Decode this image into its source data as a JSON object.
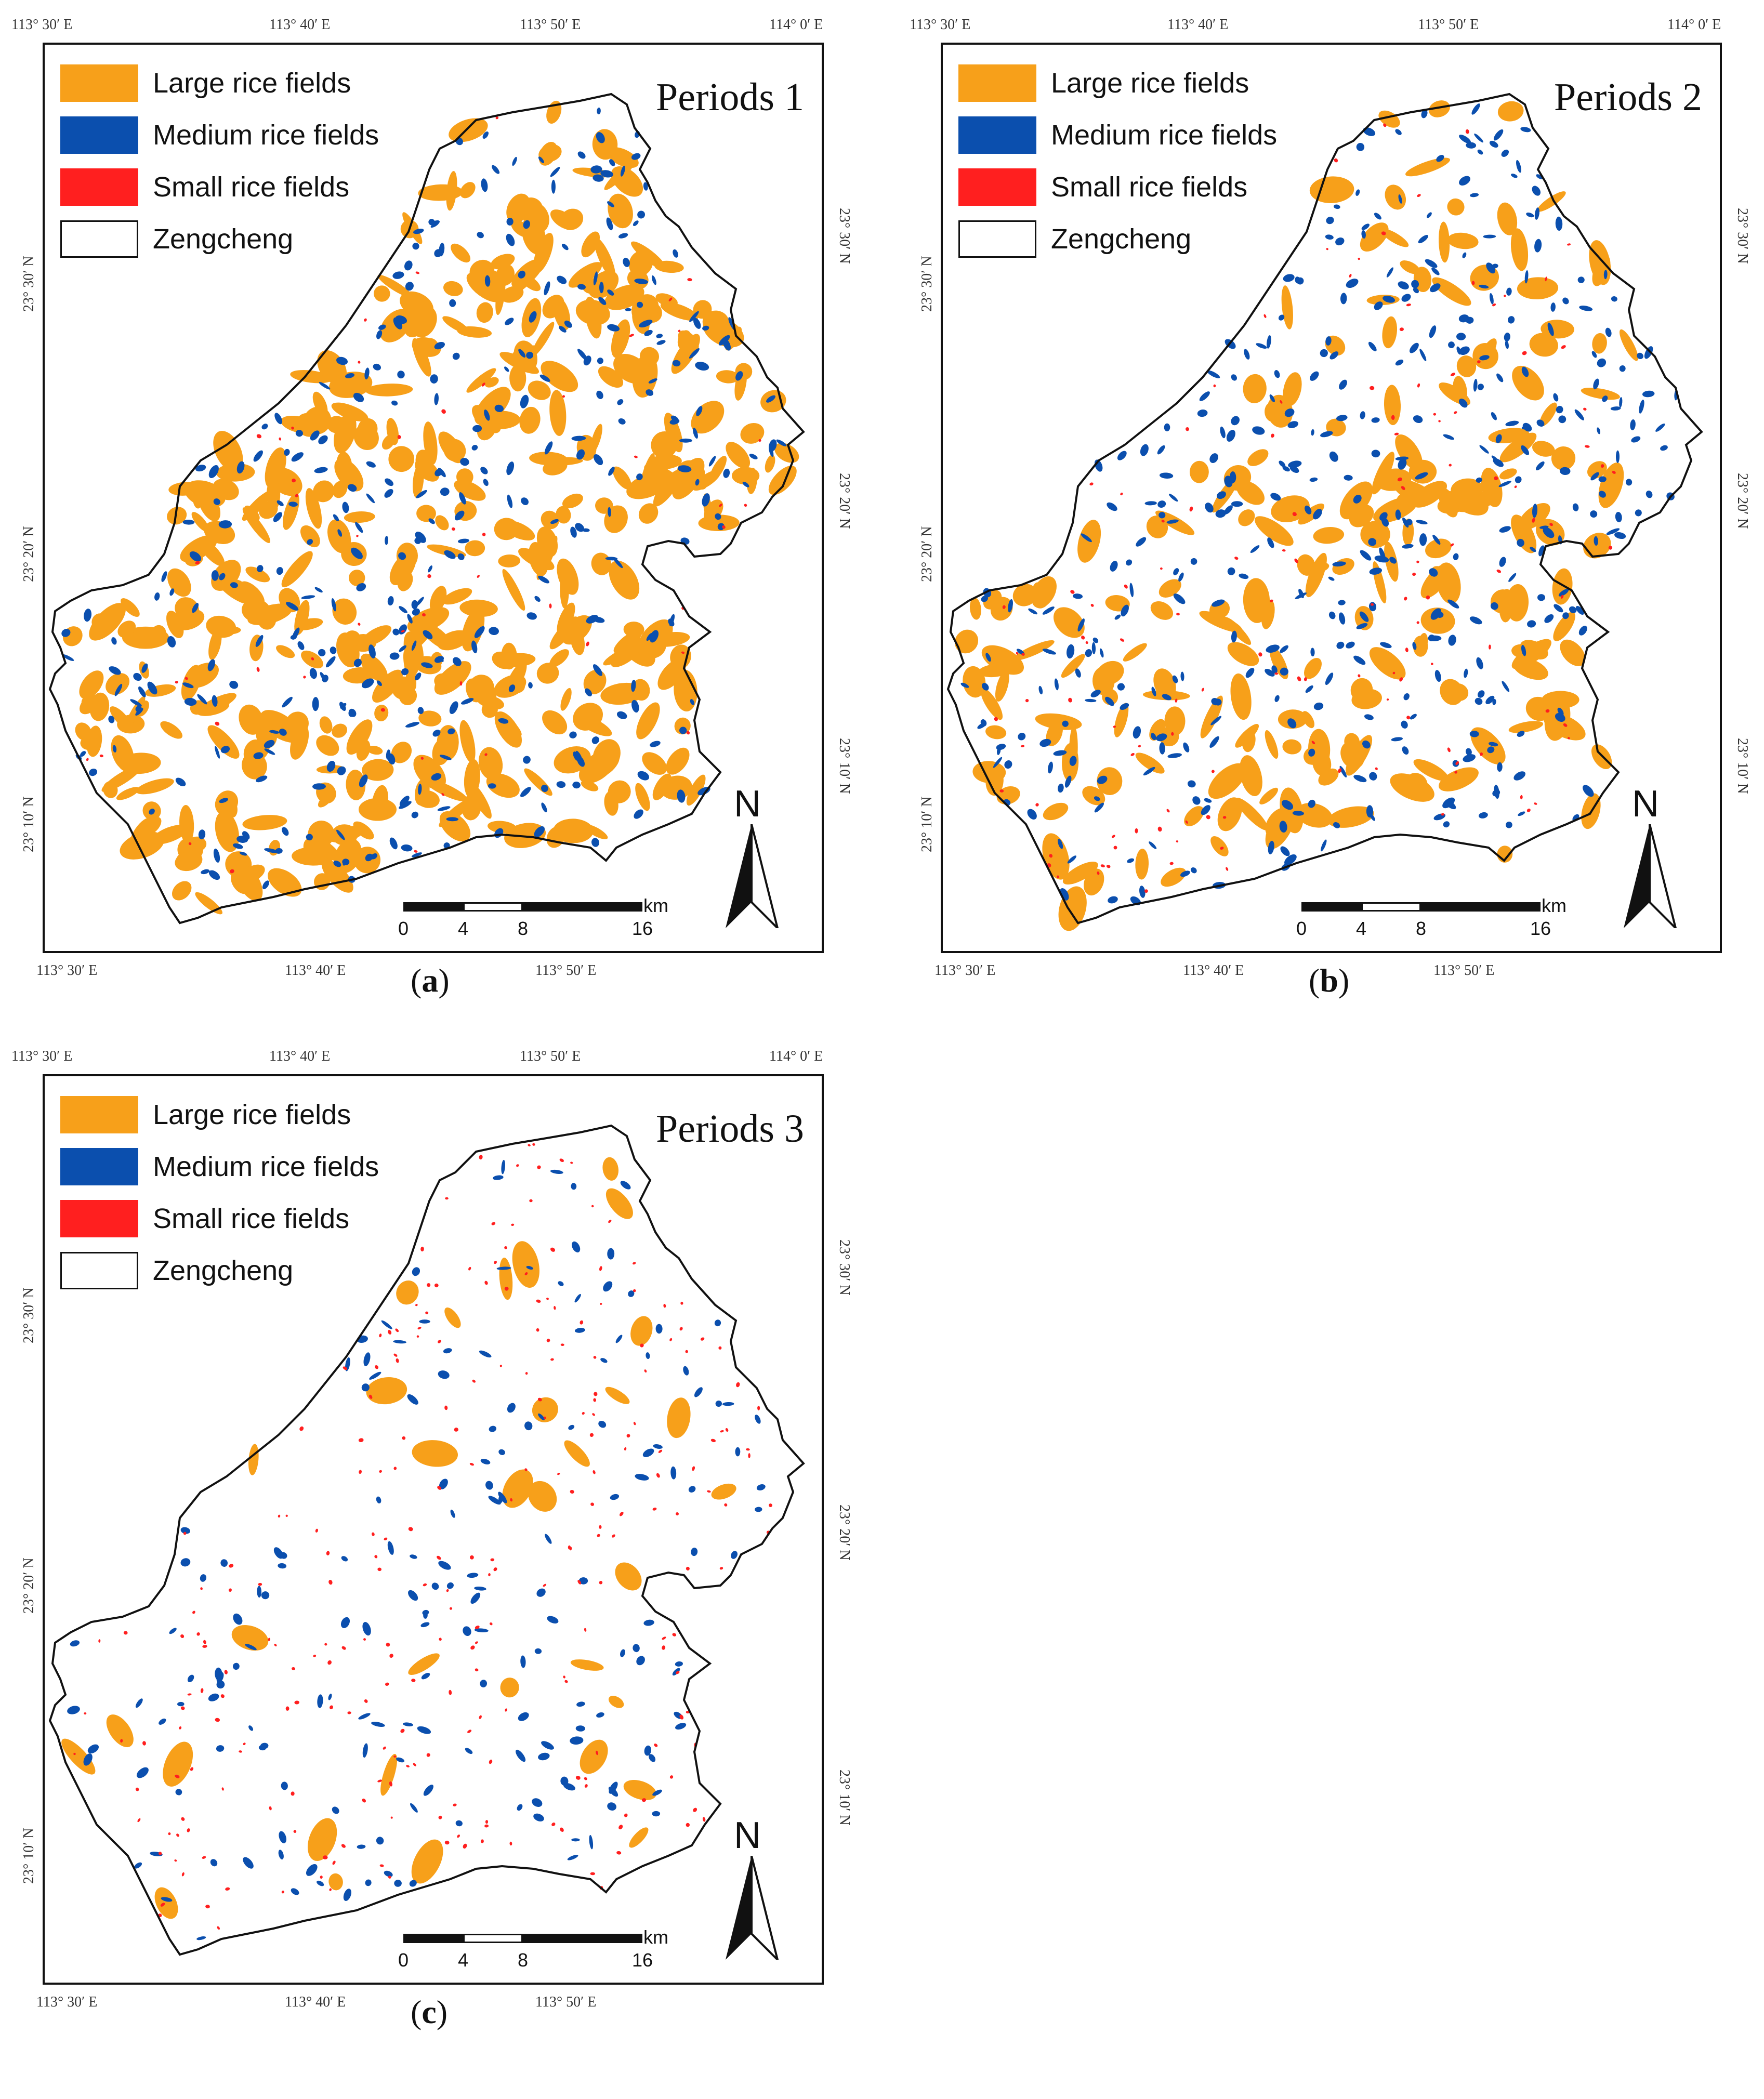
{
  "legend": {
    "large": {
      "label": "Large rice fields",
      "color": "#f7a01a"
    },
    "medium": {
      "label": "Medium rice fields",
      "color": "#0b4fae"
    },
    "small": {
      "label": "Small rice fields",
      "color": "#ff1f1f"
    },
    "boundary": {
      "label": "Zengcheng",
      "color": "#ffffff"
    }
  },
  "coordinates": {
    "top": [
      "113° 30′ E",
      "113° 40′ E",
      "113° 50′ E",
      "114° 0′ E"
    ],
    "bottom": [
      "113° 30′ E",
      "113° 40′ E",
      "113° 50′ E"
    ],
    "left": [
      "23° 30′ N",
      "23° 20′ N",
      "23° 10′ N"
    ],
    "right": [
      "23° 30′ N",
      "23° 20′ N",
      "23° 10′ N"
    ]
  },
  "scalebar": {
    "ticks": [
      "0",
      "4",
      "8",
      "16"
    ],
    "unit": "km"
  },
  "north_label": "N",
  "panels": [
    {
      "title": "Periods 1",
      "caption_letter": "a",
      "density": {
        "large": 1.0,
        "medium": 0.7,
        "small": 0.1
      }
    },
    {
      "title": "Periods 2",
      "caption_letter": "b",
      "density": {
        "large": 0.5,
        "medium": 0.8,
        "small": 0.25
      }
    },
    {
      "title": "Periods 3",
      "caption_letter": "c",
      "density": {
        "large": 0.08,
        "medium": 0.35,
        "small": 0.5
      }
    }
  ],
  "caption_open": "(",
  "caption_close": ")"
}
